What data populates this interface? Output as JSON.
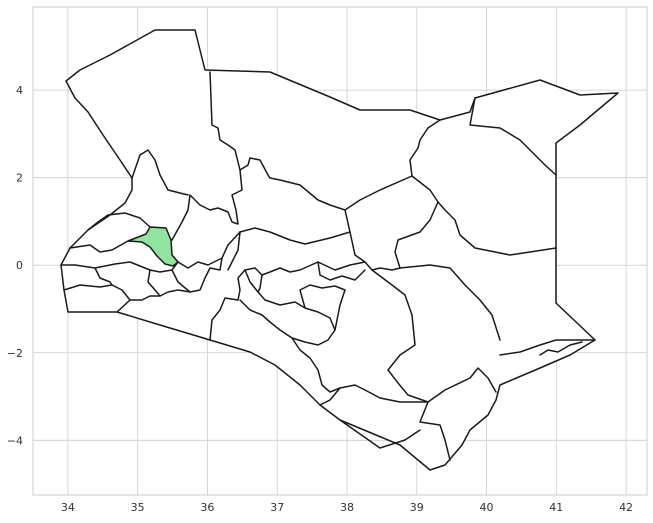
{
  "chart_data": {
    "type": "choropleth",
    "xlim": [
      33.5,
      42.3
    ],
    "ylim": [
      -5.25,
      5.9
    ],
    "x_ticks": [
      34,
      35,
      36,
      37,
      38,
      39,
      40,
      41,
      42
    ],
    "y_ticks": [
      4,
      2,
      0,
      -2,
      -4
    ],
    "x_tick_labels": [
      "34",
      "35",
      "36",
      "37",
      "38",
      "39",
      "40",
      "41",
      "42"
    ],
    "y_tick_labels": [
      "4",
      "2",
      "0",
      "−2",
      "−4"
    ],
    "grid": true,
    "highlight_color": "#90e4a0",
    "base_color": "#ffffff",
    "boundary_color": "#1a1a1a"
  }
}
